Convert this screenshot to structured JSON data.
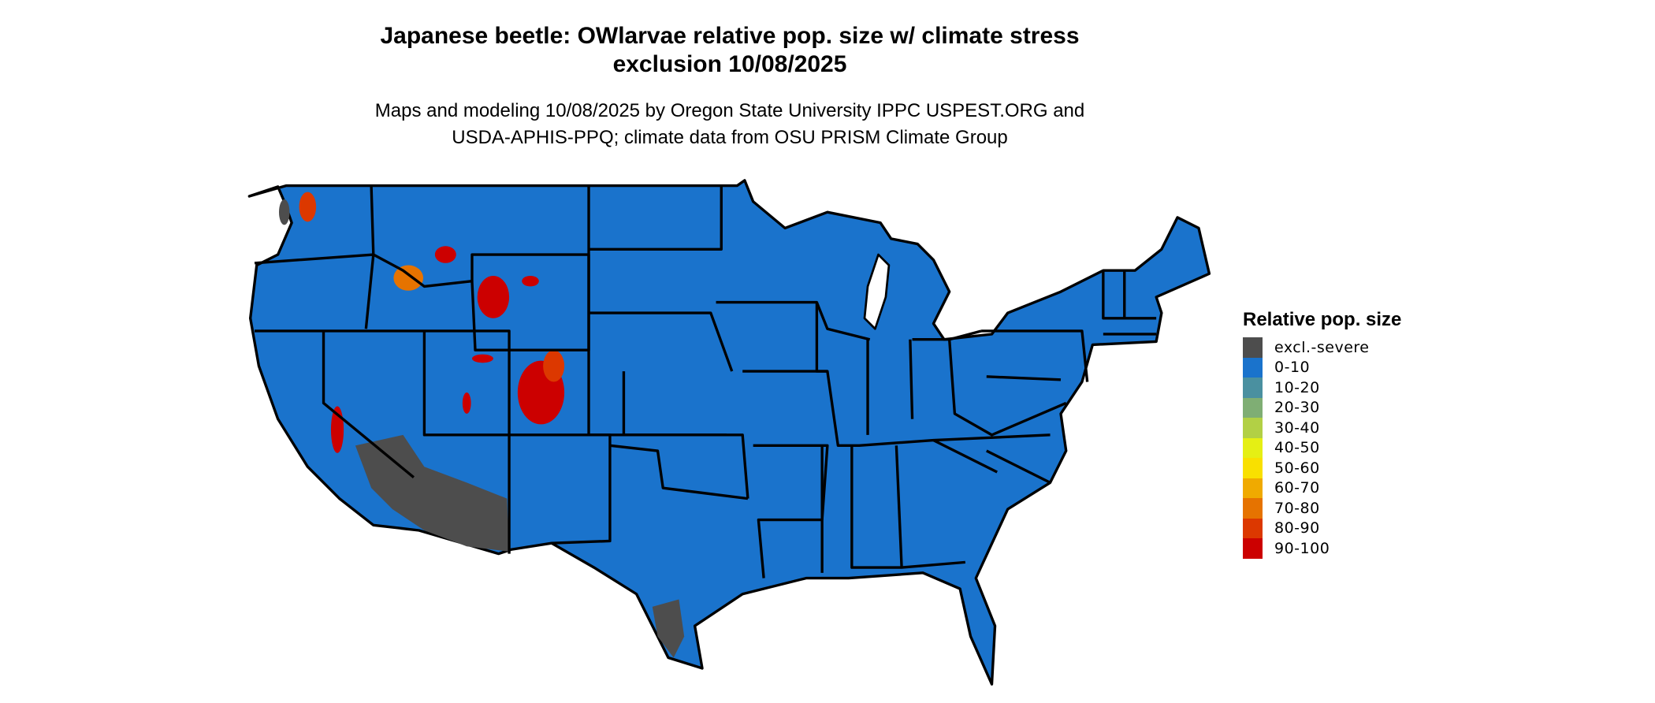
{
  "title_line1": "Japanese beetle: OWlarvae relative pop. size w/ climate stress",
  "title_line2": "exclusion 10/08/2025",
  "subtitle_line1": "Maps and modeling 10/08/2025 by Oregon State University IPPC USPEST.ORG and",
  "subtitle_line2": "USDA-APHIS-PPQ; climate data from OSU PRISM Climate Group",
  "chart_data": {
    "type": "map",
    "region": "contiguous United States",
    "legend": {
      "title": "Relative pop. size",
      "placement": "right",
      "items": [
        {
          "label": "excl.-severe",
          "color": "#4d4d4d"
        },
        {
          "label": "0-10",
          "color": "#1a73cc"
        },
        {
          "label": "10-20",
          "color": "#4a90a0"
        },
        {
          "label": "20-30",
          "color": "#7fae74"
        },
        {
          "label": "30-40",
          "color": "#b2d045"
        },
        {
          "label": "40-50",
          "color": "#e5ef14"
        },
        {
          "label": "50-60",
          "color": "#f9e000"
        },
        {
          "label": "60-70",
          "color": "#f0aa00"
        },
        {
          "label": "70-80",
          "color": "#e67300"
        },
        {
          "label": "80-90",
          "color": "#dc3800"
        },
        {
          "label": "90-100",
          "color": "#cc0000"
        }
      ]
    },
    "dominant_class": "0-10",
    "excluded_areas": [
      "Arizona",
      "southern Nevada",
      "southeastern California",
      "south Texas"
    ],
    "high_value_areas": [
      "Colorado mountains",
      "Wyoming mountains",
      "Sierra Nevada",
      "Idaho / Montana mountains"
    ]
  }
}
